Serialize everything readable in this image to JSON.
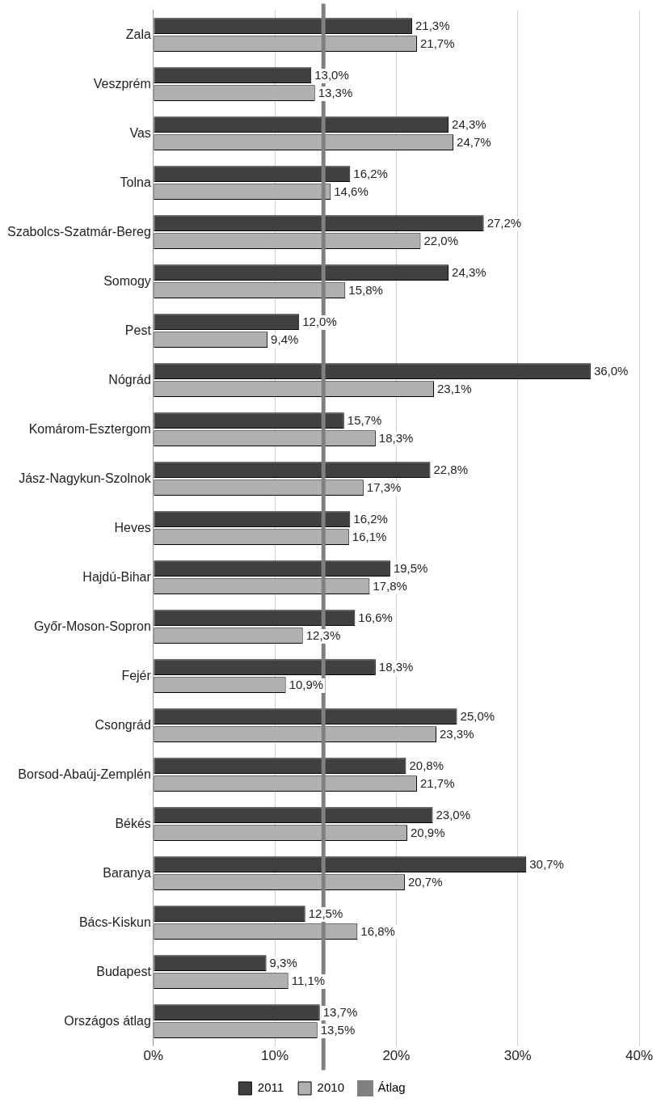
{
  "chart_data": {
    "type": "bar",
    "orientation": "horizontal",
    "categories": [
      "Zala",
      "Veszprém",
      "Vas",
      "Tolna",
      "Szabolcs-Szatmár-Bereg",
      "Somogy",
      "Pest",
      "Nógrád",
      "Komárom-Esztergom",
      "Jász-Nagykun-Szolnok",
      "Heves",
      "Hajdú-Bihar",
      "Győr-Moson-Sopron",
      "Fejér",
      "Csongrád",
      "Borsod-Abaúj-Zemplén",
      "Békés",
      "Baranya",
      "Bács-Kiskun",
      "Budapest",
      "Országos átlag"
    ],
    "series": [
      {
        "name": "2011",
        "color": "#404040",
        "values": [
          21.3,
          13.0,
          24.3,
          16.2,
          27.2,
          24.3,
          12.0,
          36.0,
          15.7,
          22.8,
          16.2,
          19.5,
          16.6,
          18.3,
          25.0,
          20.8,
          23.0,
          30.7,
          12.5,
          9.3,
          13.7
        ],
        "value_labels": [
          "21,3%",
          "13,0%",
          "24,3%",
          "16,2%",
          "27,2%",
          "24,3%",
          "12,0%",
          "36,0%",
          "15,7%",
          "22,8%",
          "16,2%",
          "19,5%",
          "16,6%",
          "18,3%",
          "25,0%",
          "20,8%",
          "23,0%",
          "30,7%",
          "12,5%",
          "9,3%",
          "13,7%"
        ]
      },
      {
        "name": "2010",
        "color": "#b0b0b0",
        "values": [
          21.7,
          13.3,
          24.7,
          14.6,
          22.0,
          15.8,
          9.4,
          23.1,
          18.3,
          17.3,
          16.1,
          17.8,
          12.3,
          10.9,
          23.3,
          21.7,
          20.9,
          20.7,
          16.8,
          11.1,
          13.5
        ],
        "value_labels": [
          "21,7%",
          "13,3%",
          "24,7%",
          "14,6%",
          "22,0%",
          "15,8%",
          "9,4%",
          "23,1%",
          "18,3%",
          "17,3%",
          "16,1%",
          "17,8%",
          "12,3%",
          "10,9%",
          "23,3%",
          "21,7%",
          "20,9%",
          "20,7%",
          "16,8%",
          "11,1%",
          "13,5%"
        ]
      }
    ],
    "xlim": [
      0,
      40
    ],
    "xticks": [
      {
        "value": 0,
        "label": "0%"
      },
      {
        "value": 10,
        "label": "10%"
      },
      {
        "value": 20,
        "label": "20%"
      },
      {
        "value": 30,
        "label": "30%"
      },
      {
        "value": 40,
        "label": "40%"
      }
    ],
    "ref_lines": [
      {
        "axis": "x",
        "value": 14,
        "label": "Átlag",
        "color": "#808080"
      }
    ],
    "grid": "x",
    "legend": "bottom"
  }
}
